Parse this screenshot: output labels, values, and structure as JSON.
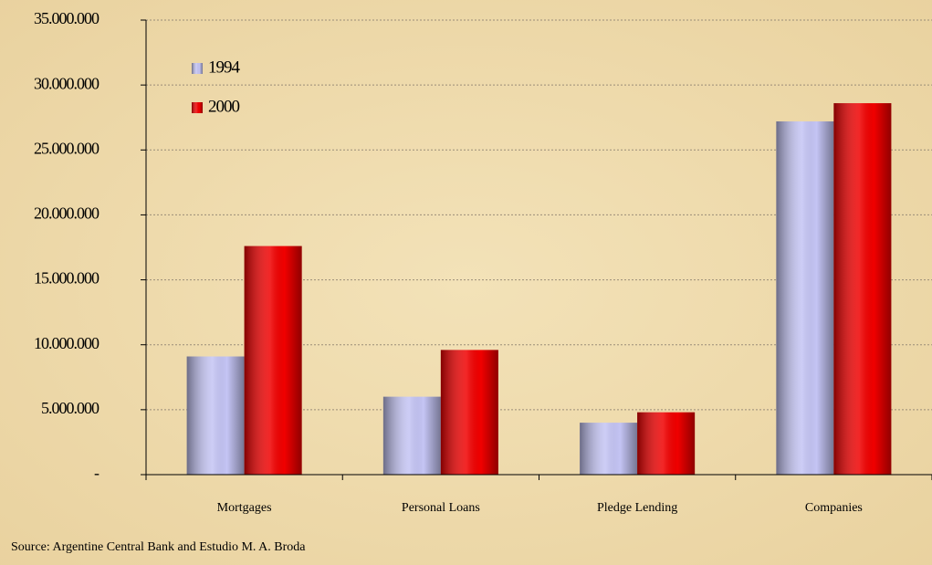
{
  "chart_data": {
    "type": "bar",
    "categories": [
      "Mortgages",
      "Personal Loans",
      "Pledge Lending",
      "Companies"
    ],
    "series": [
      {
        "name": "1994",
        "color": "#c4c4f4",
        "values": [
          9100000,
          6000000,
          4000000,
          27200000
        ]
      },
      {
        "name": "2000",
        "color": "#f00000",
        "values": [
          17600000,
          9600000,
          4800000,
          28600000
        ]
      }
    ],
    "ylim": [
      0,
      35000000
    ],
    "yticks": [
      {
        "value": 0,
        "label": "-"
      },
      {
        "value": 5000000,
        "label": "5.000.000"
      },
      {
        "value": 10000000,
        "label": "10.000.000"
      },
      {
        "value": 15000000,
        "label": "15.000.000"
      },
      {
        "value": 20000000,
        "label": "20.000.000"
      },
      {
        "value": 25000000,
        "label": "25.000.000"
      },
      {
        "value": 30000000,
        "label": "30.000.000"
      },
      {
        "value": 35000000,
        "label": "35.000.000"
      }
    ],
    "grid": true,
    "legend": "top-left",
    "source": "Source: Argentine Central Bank and Estudio M. A. Broda"
  }
}
